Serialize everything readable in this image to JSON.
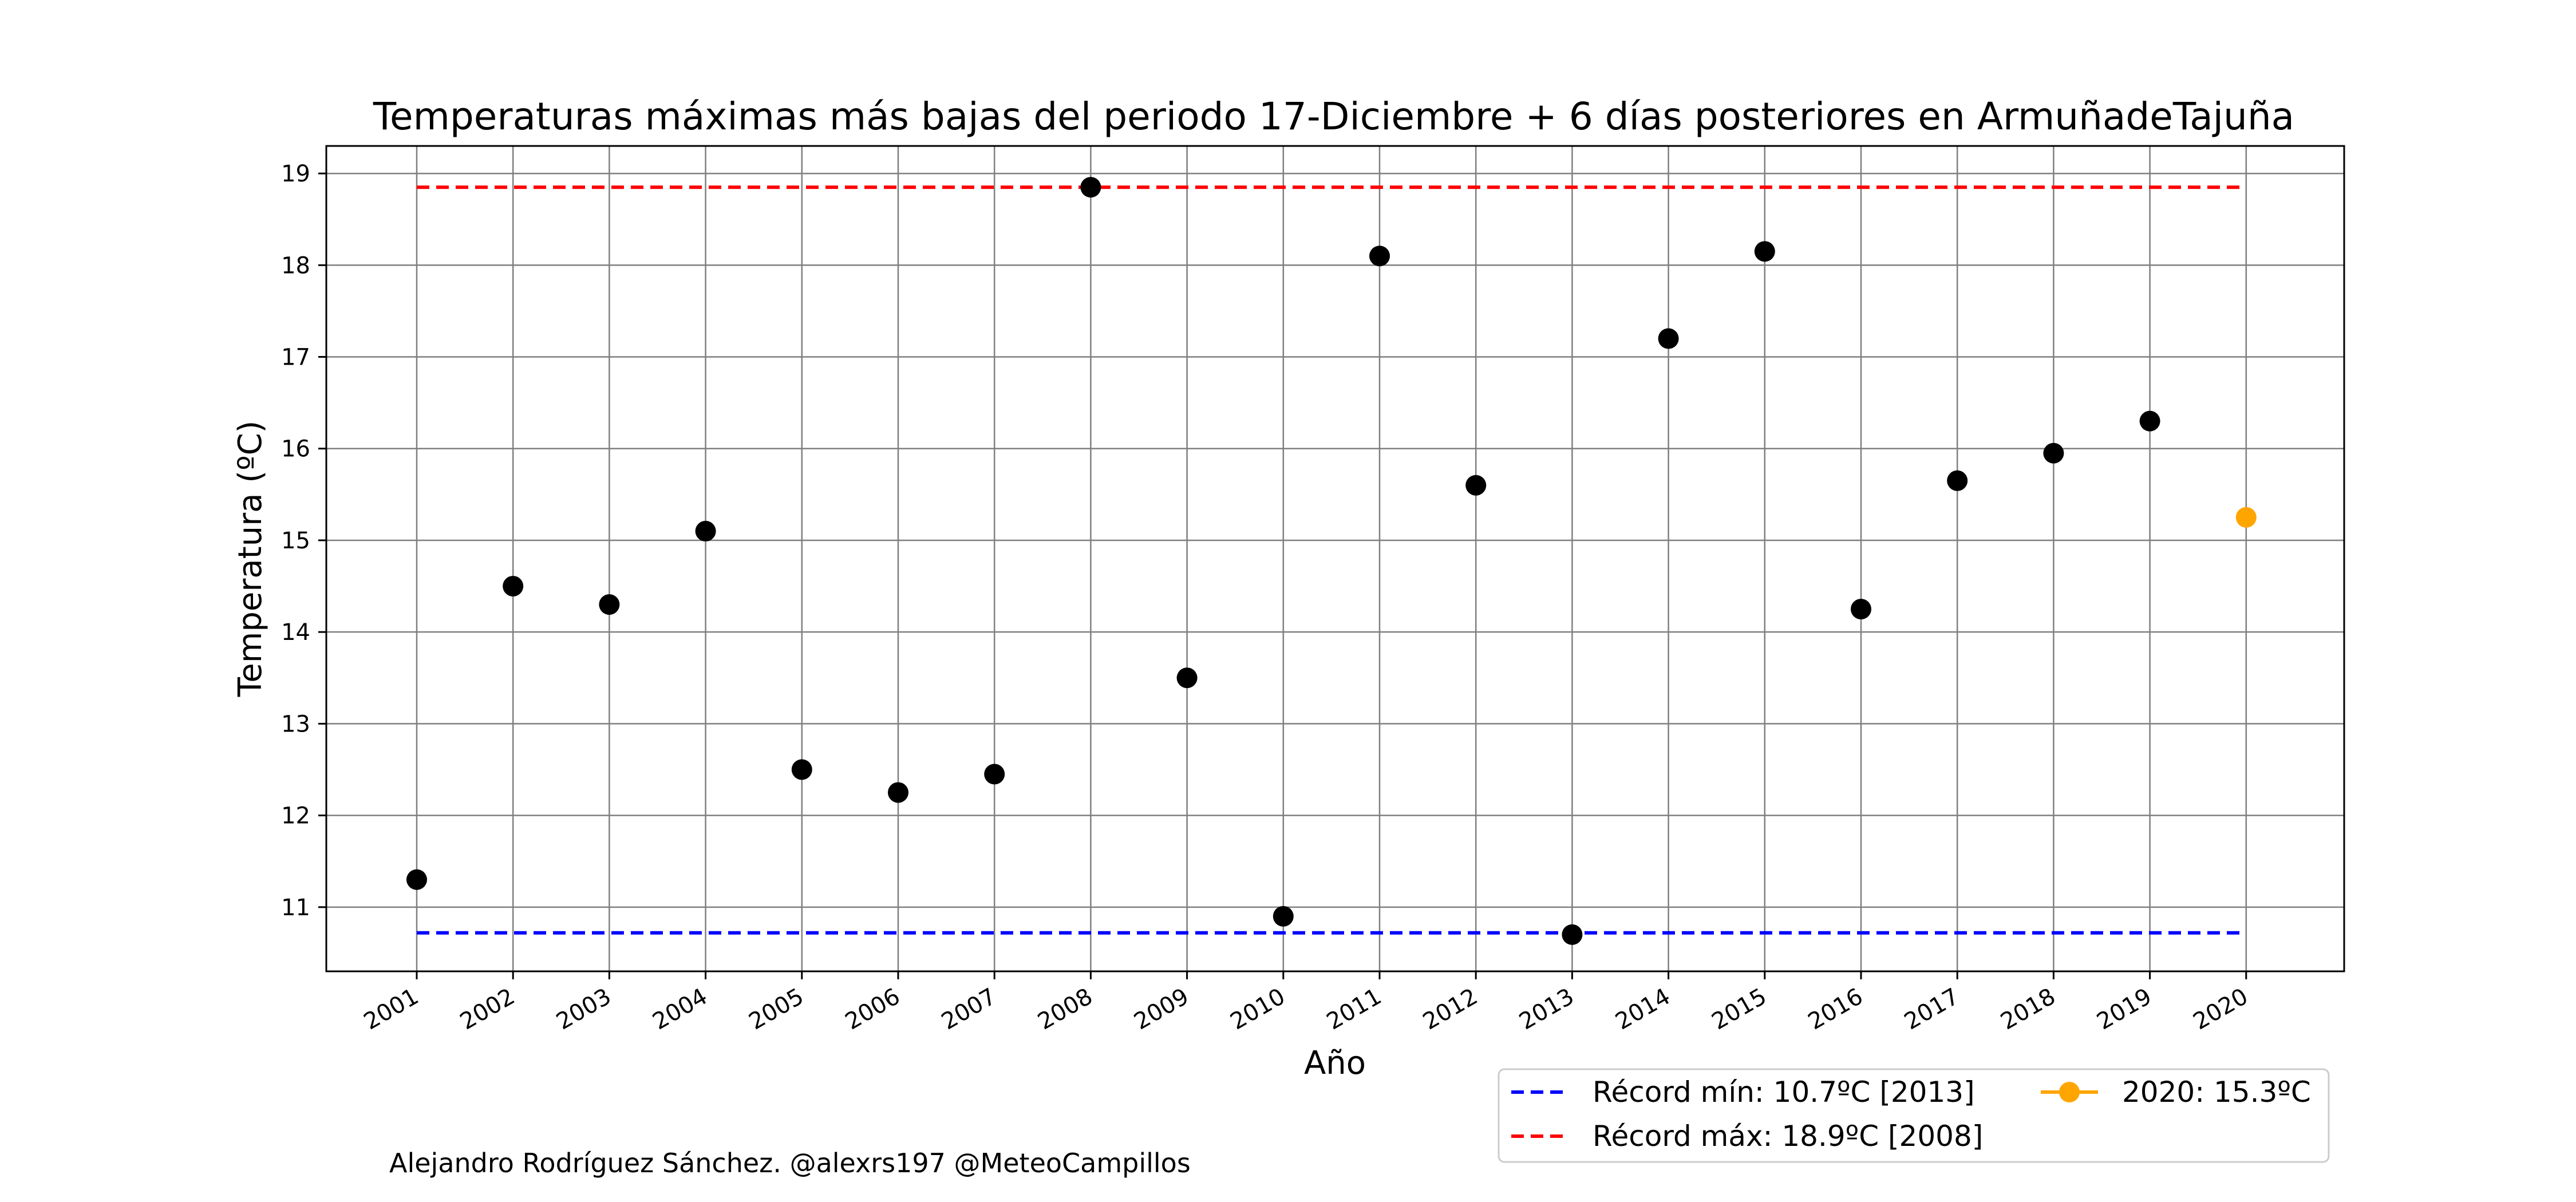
{
  "chart_data": {
    "type": "scatter",
    "title": "Temperaturas máximas más bajas del periodo 17-Diciembre + 6 días posteriores en ArmuñadeTajuña",
    "xlabel": "Año",
    "ylabel": "Temperatura (ºC)",
    "ylim": [
      10.3,
      19.3
    ],
    "yticks": [
      11,
      12,
      13,
      14,
      15,
      16,
      17,
      18,
      19
    ],
    "grid": true,
    "x": [
      "2001",
      "2002",
      "2003",
      "2004",
      "2005",
      "2006",
      "2007",
      "2008",
      "2009",
      "2010",
      "2011",
      "2012",
      "2013",
      "2014",
      "2015",
      "2016",
      "2017",
      "2018",
      "2019",
      "2020"
    ],
    "series": [
      {
        "name": "",
        "color": "#000000",
        "x": [
          "2001",
          "2002",
          "2003",
          "2004",
          "2005",
          "2006",
          "2007",
          "2008",
          "2009",
          "2010",
          "2011",
          "2012",
          "2013",
          "2014",
          "2015",
          "2016",
          "2017",
          "2018",
          "2019"
        ],
        "values": [
          11.3,
          14.5,
          14.3,
          15.1,
          12.5,
          12.25,
          12.45,
          18.85,
          13.5,
          10.9,
          18.1,
          15.6,
          10.7,
          17.2,
          18.15,
          14.25,
          15.65,
          15.95,
          16.3
        ]
      },
      {
        "name": "2020: 15.3ºC",
        "color": "#ffa500",
        "x": [
          "2020"
        ],
        "values": [
          15.25
        ]
      }
    ],
    "reference_lines": [
      {
        "name": "Récord mín: 10.7ºC [2013]",
        "value": 10.72,
        "color": "#0000ff",
        "style": "dashed"
      },
      {
        "name": "Récord máx: 18.9ºC [2008]",
        "value": 18.85,
        "color": "#ff0000",
        "style": "dashed"
      }
    ],
    "legend": {
      "placement": "bottom-right",
      "entries": [
        {
          "label": "Récord mín: 10.7ºC [2013]",
          "color": "#0000ff",
          "kind": "dashed"
        },
        {
          "label": "Récord máx: 18.9ºC [2008]",
          "color": "#ff0000",
          "kind": "dashed"
        },
        {
          "label": "2020: 15.3ºC",
          "color": "#ffa500",
          "kind": "line-marker"
        }
      ]
    }
  },
  "credit": "Alejandro Rodríguez Sánchez. @alexrs197 @MeteoCampillos"
}
